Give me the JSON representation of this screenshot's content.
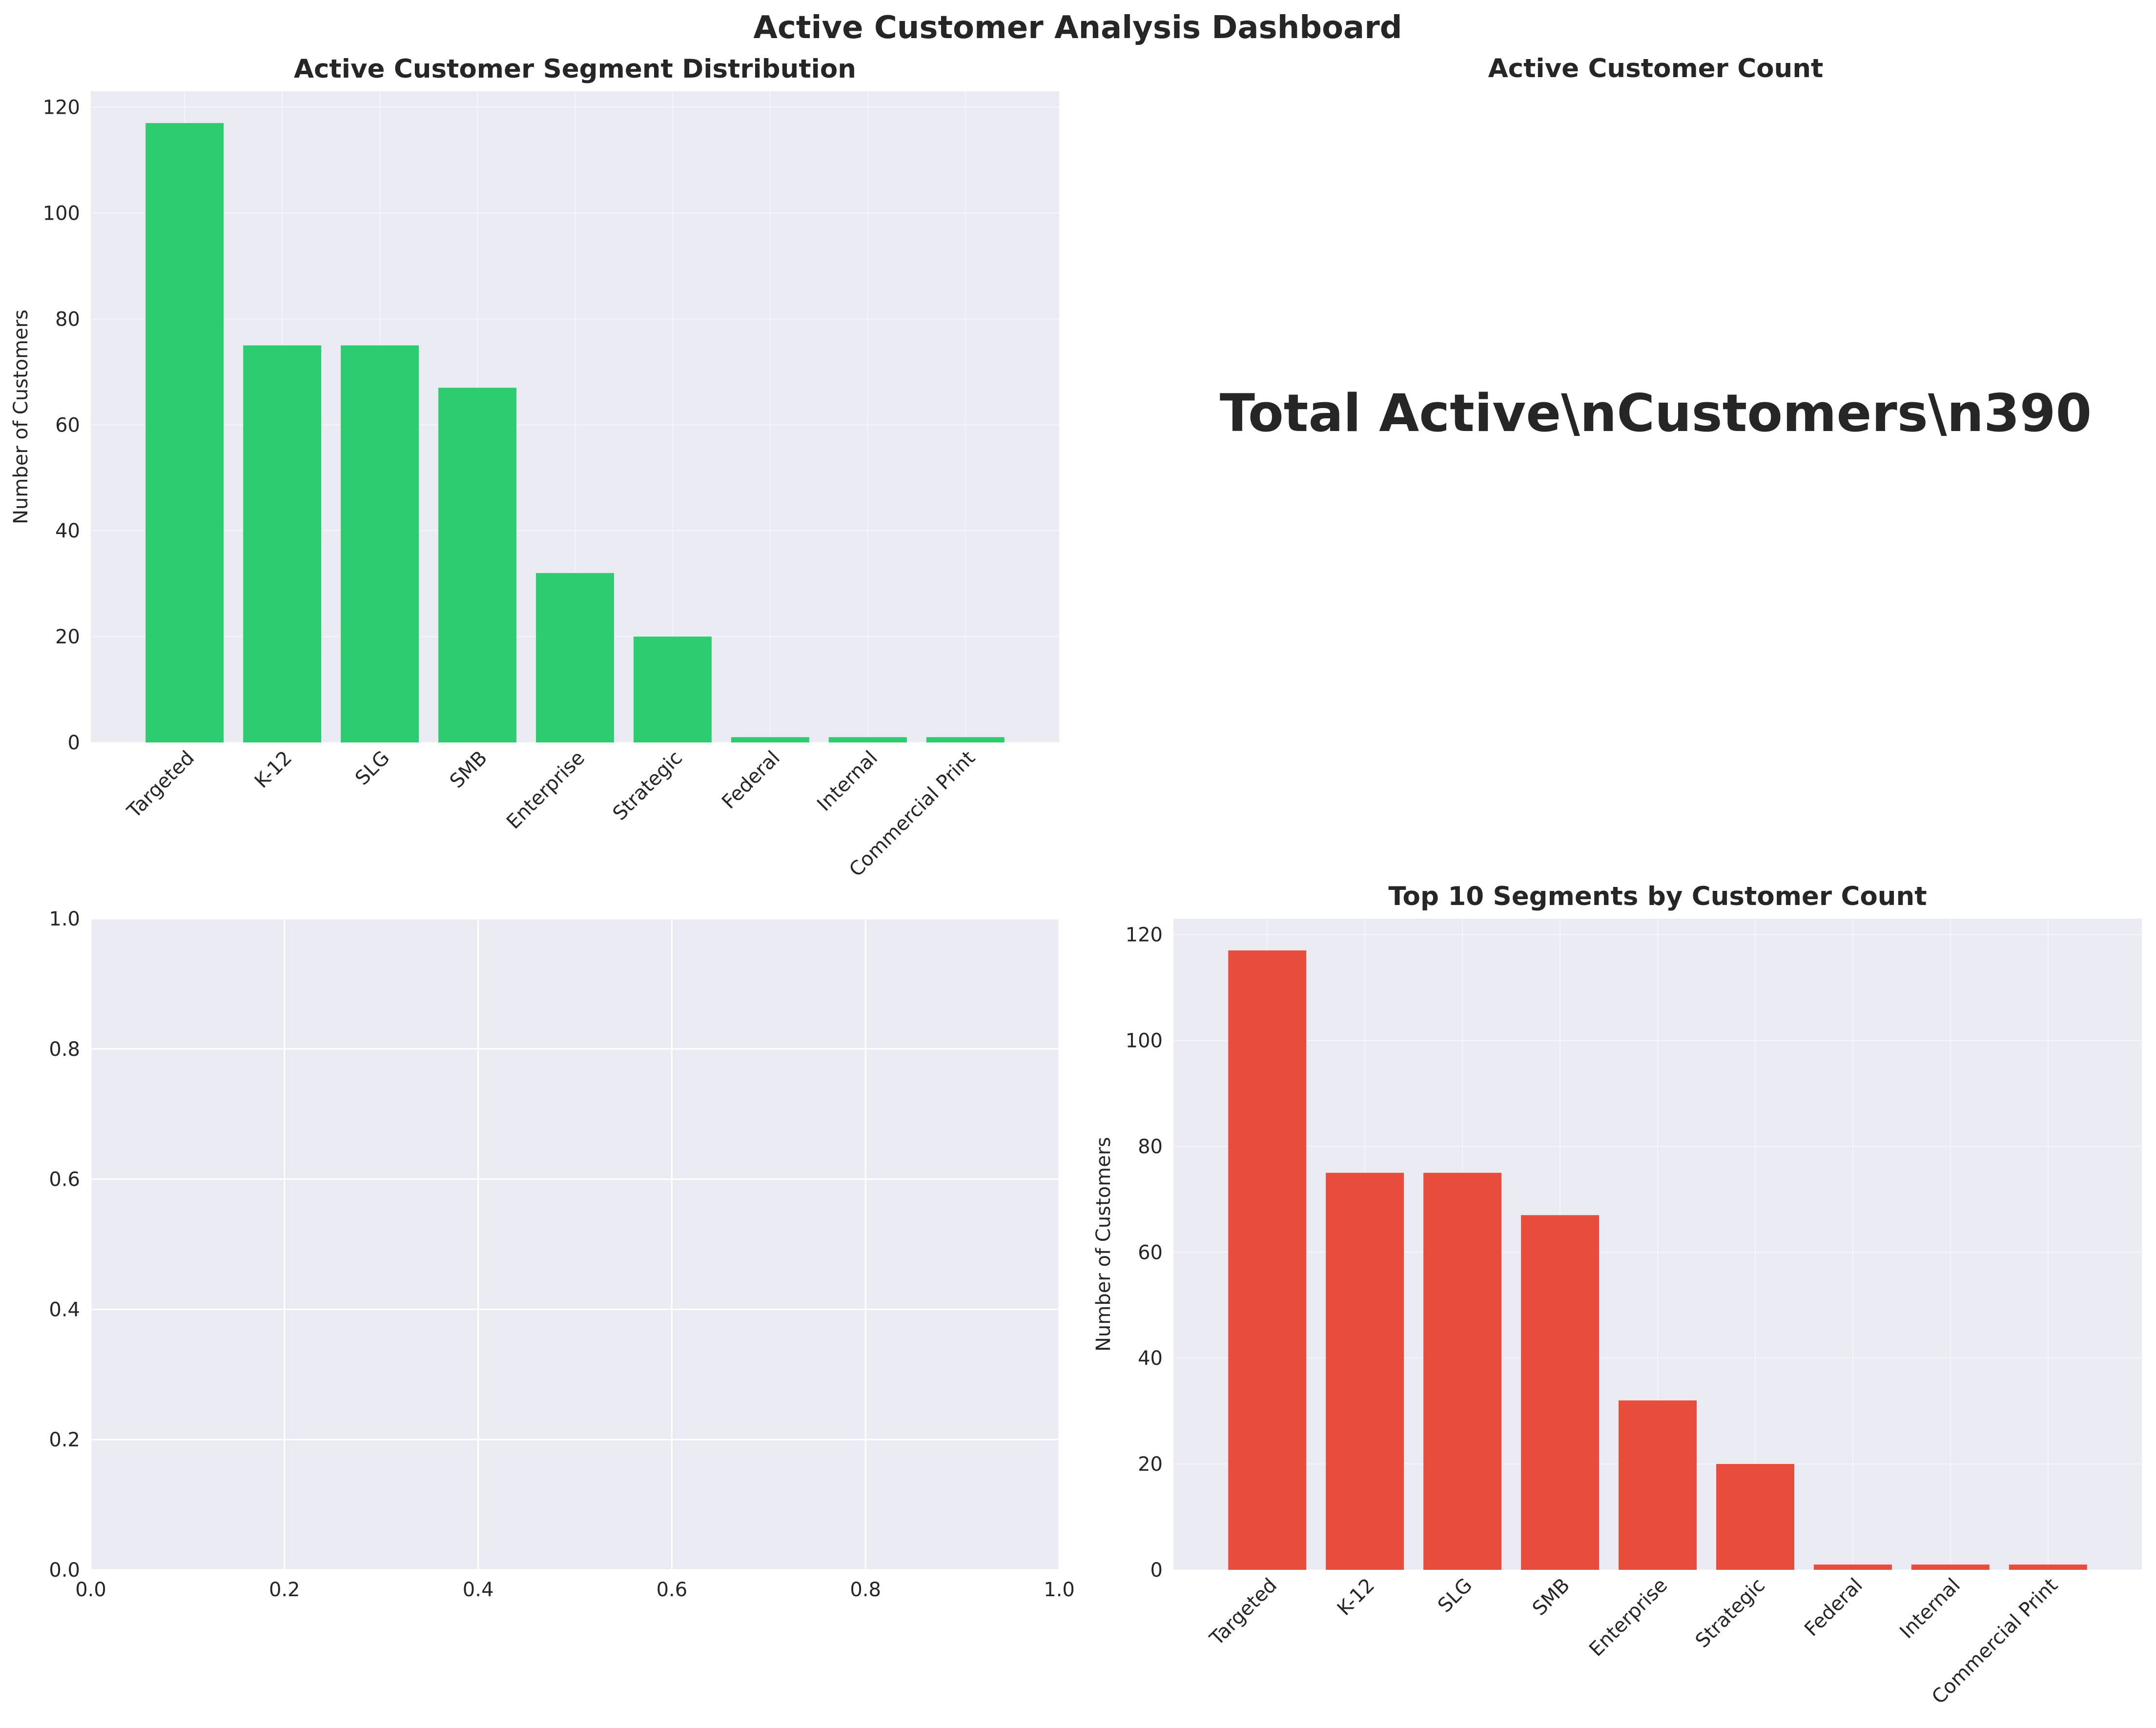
{
  "dashboard": {
    "title": "Active Customer Analysis Dashboard"
  },
  "colors": {
    "panel_bg": "#eaeaf2",
    "grid": "#ffffff",
    "bar_green": "#2ecc71",
    "bar_red": "#e74c3c",
    "text": "#262626"
  },
  "kpi": {
    "title": "Active Customer Count",
    "text": "Total Active\\nCustomers\\n390"
  },
  "chart_data": [
    {
      "type": "bar",
      "title": "Active Customer Segment Distribution",
      "xlabel": "",
      "ylabel": "Number of Customers",
      "categories": [
        "Targeted",
        "K-12",
        "SLG",
        "SMB",
        "Enterprise",
        "Strategic",
        "Federal",
        "Internal",
        "Commercial Print"
      ],
      "values": [
        117,
        75,
        75,
        67,
        32,
        20,
        1,
        1,
        1
      ],
      "ylim": [
        0,
        123
      ],
      "yticks": [
        0,
        20,
        40,
        60,
        80,
        100,
        120
      ],
      "color": "#2ecc71",
      "grid": true
    },
    {
      "type": "bar",
      "title": "",
      "xlabel": "",
      "ylabel": "",
      "categories": [],
      "values": [],
      "xlim": [
        0,
        1
      ],
      "ylim": [
        0,
        1
      ],
      "xticks": [
        "0.0",
        "0.2",
        "0.4",
        "0.6",
        "0.8",
        "1.0"
      ],
      "yticks": [
        "0.0",
        "0.2",
        "0.4",
        "0.6",
        "0.8",
        "1.0"
      ],
      "grid": true
    },
    {
      "type": "bar",
      "title": "Top 10 Segments by Customer Count",
      "xlabel": "",
      "ylabel": "Number of Customers",
      "categories": [
        "Targeted",
        "K-12",
        "SLG",
        "SMB",
        "Enterprise",
        "Strategic",
        "Federal",
        "Internal",
        "Commercial Print"
      ],
      "values": [
        117,
        75,
        75,
        67,
        32,
        20,
        1,
        1,
        1
      ],
      "ylim": [
        0,
        123
      ],
      "yticks": [
        0,
        20,
        40,
        60,
        80,
        100,
        120
      ],
      "color": "#e74c3c",
      "grid": true
    }
  ]
}
